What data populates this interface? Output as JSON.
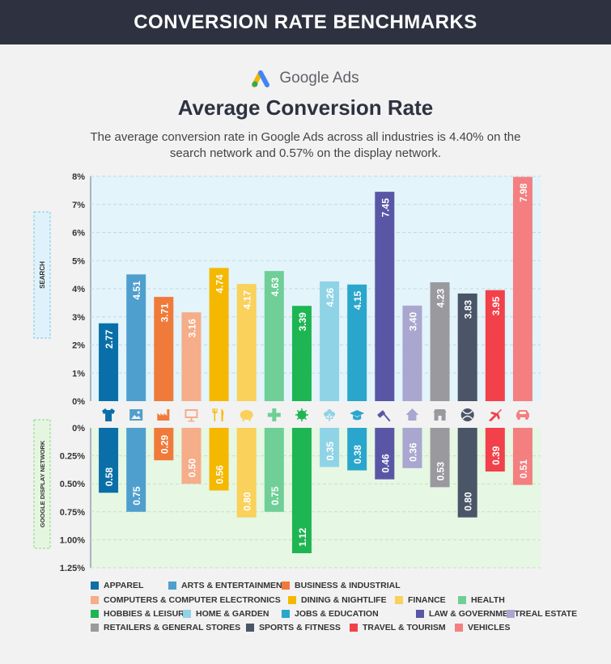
{
  "header": {
    "title": "CONVERSION RATE BENCHMARKS"
  },
  "brand": {
    "name": "Google Ads"
  },
  "heading": "Average Conversion Rate",
  "subtitle": "The average conversion rate in Google Ads across all industries is 4.40% on the search network and 0.57% on the display network.",
  "chart_data": {
    "type": "bar",
    "search": {
      "label": "SEARCH",
      "ylim": [
        0,
        8
      ],
      "ticks": [
        "0%",
        "1%",
        "2%",
        "3%",
        "4%",
        "5%",
        "6%",
        "7%",
        "8%"
      ]
    },
    "display": {
      "label": "GOOGLE DISPLAY NETWORK",
      "ylim": [
        0,
        1.25
      ],
      "ticks": [
        "0%",
        "0.25%",
        "0.50%",
        "0.75%",
        "1.00%",
        "1.25%"
      ]
    },
    "categories": [
      "APPAREL",
      "ARTS & ENTERTAINMENT",
      "BUSINESS & INDUSTRIAL",
      "COMPUTERS & COMPUTER ELECTRONICS",
      "DINING & NIGHTLIFE",
      "FINANCE",
      "HEALTH",
      "HOBBIES & LEISURE",
      "HOME & GARDEN",
      "JOBS & EDUCATION",
      "LAW & GOVERNMENT",
      "REAL ESTATE",
      "RETAILERS & GENERAL STORES",
      "SPORTS & FITNESS",
      "TRAVEL & TOURISM",
      "VEHICLES"
    ],
    "series": [
      {
        "name": "SEARCH",
        "values": [
          2.77,
          4.51,
          3.71,
          3.16,
          4.74,
          4.17,
          4.63,
          3.39,
          4.26,
          4.15,
          7.45,
          3.4,
          4.23,
          3.83,
          3.95,
          7.98
        ],
        "labels": [
          "2.77",
          "4.51",
          "3.71",
          "3.16",
          "4.74",
          "4.17",
          "4.63",
          "3.39",
          "4.26",
          "4.15",
          "7.45",
          "3.40",
          "4.23",
          "3.83",
          "3.95",
          "7.98"
        ]
      },
      {
        "name": "GOOGLE DISPLAY NETWORK",
        "values": [
          0.58,
          0.75,
          0.29,
          0.5,
          0.56,
          0.8,
          0.75,
          1.12,
          0.35,
          0.38,
          0.46,
          0.36,
          0.53,
          0.8,
          0.39,
          0.51
        ],
        "labels": [
          "0.58",
          "0.75",
          "0.29",
          "0.50",
          "0.56",
          "0.80",
          "0.75",
          "1.12",
          "0.35",
          "0.38",
          "0.46",
          "0.36",
          "0.53",
          "0.80",
          "0.39",
          "0.51"
        ]
      }
    ],
    "colors": [
      "#0a6fa8",
      "#4f9fce",
      "#f07a3a",
      "#f5ad8a",
      "#f5b800",
      "#f9d15b",
      "#6fcf97",
      "#1eb553",
      "#8fd3e6",
      "#2aa6cc",
      "#5a56a6",
      "#a9a7cf",
      "#9a9a9e",
      "#4a5568",
      "#f2414a",
      "#f47f80"
    ],
    "icons": [
      "shirt-icon",
      "image-icon",
      "factory-icon",
      "monitor-icon",
      "utensils-icon",
      "piggy-bank-icon",
      "plus-icon",
      "virus-icon",
      "flower-icon",
      "graduation-cap-icon",
      "gavel-icon",
      "house-icon",
      "store-icon",
      "ball-icon",
      "plane-icon",
      "car-icon"
    ],
    "grid": true,
    "legend_position": "bottom"
  }
}
